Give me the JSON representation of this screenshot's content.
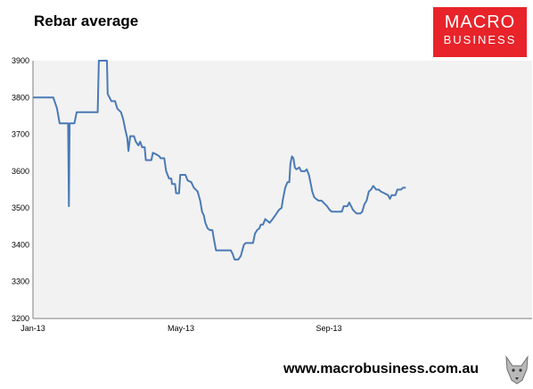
{
  "header": {
    "title": "Rebar average"
  },
  "logo": {
    "line1": "MACRO",
    "line2": "BUSINESS"
  },
  "footer": {
    "url": "www.macrobusiness.com.au"
  },
  "colors": {
    "line": "#4a7ab5",
    "plot_bg": "#f2f2f2",
    "logo_bg": "#e8232a"
  },
  "chart_data": {
    "type": "line",
    "title": "Rebar average",
    "xlabel": "",
    "ylabel": "",
    "ylim": [
      3200,
      3900
    ],
    "yticks": [
      3200,
      3300,
      3400,
      3500,
      3600,
      3700,
      3800,
      3900
    ],
    "x_tick_labels": [
      "Jan-13",
      "May-13",
      "Sep-13"
    ],
    "x_ticks_months": [
      0,
      4,
      8
    ],
    "x_range_months": [
      0,
      11.6
    ],
    "grid": false,
    "legend": "none",
    "series": [
      {
        "name": "",
        "points": [
          [
            0.0,
            3800
          ],
          [
            0.55,
            3800
          ],
          [
            0.65,
            3770
          ],
          [
            0.72,
            3730
          ],
          [
            0.95,
            3730
          ],
          [
            0.97,
            3505
          ],
          [
            0.99,
            3730
          ],
          [
            1.12,
            3730
          ],
          [
            1.18,
            3760
          ],
          [
            1.75,
            3760
          ],
          [
            1.78,
            3900
          ],
          [
            2.0,
            3900
          ],
          [
            2.02,
            3810
          ],
          [
            2.12,
            3790
          ],
          [
            2.22,
            3790
          ],
          [
            2.28,
            3770
          ],
          [
            2.38,
            3760
          ],
          [
            2.44,
            3740
          ],
          [
            2.5,
            3710
          ],
          [
            2.55,
            3690
          ],
          [
            2.58,
            3655
          ],
          [
            2.63,
            3695
          ],
          [
            2.73,
            3695
          ],
          [
            2.78,
            3680
          ],
          [
            2.85,
            3670
          ],
          [
            2.9,
            3680
          ],
          [
            2.95,
            3665
          ],
          [
            3.02,
            3665
          ],
          [
            3.05,
            3630
          ],
          [
            3.2,
            3630
          ],
          [
            3.24,
            3650
          ],
          [
            3.35,
            3645
          ],
          [
            3.42,
            3640
          ],
          [
            3.45,
            3635
          ],
          [
            3.55,
            3635
          ],
          [
            3.6,
            3600
          ],
          [
            3.68,
            3580
          ],
          [
            3.74,
            3580
          ],
          [
            3.76,
            3565
          ],
          [
            3.84,
            3565
          ],
          [
            3.87,
            3540
          ],
          [
            3.95,
            3540
          ],
          [
            3.98,
            3590
          ],
          [
            4.12,
            3590
          ],
          [
            4.18,
            3575
          ],
          [
            4.28,
            3570
          ],
          [
            4.35,
            3555
          ],
          [
            4.45,
            3545
          ],
          [
            4.52,
            3520
          ],
          [
            4.57,
            3490
          ],
          [
            4.62,
            3480
          ],
          [
            4.66,
            3460
          ],
          [
            4.72,
            3445
          ],
          [
            4.78,
            3440
          ],
          [
            4.85,
            3440
          ],
          [
            4.9,
            3410
          ],
          [
            4.95,
            3385
          ],
          [
            5.35,
            3385
          ],
          [
            5.4,
            3375
          ],
          [
            5.45,
            3360
          ],
          [
            5.55,
            3360
          ],
          [
            5.62,
            3370
          ],
          [
            5.7,
            3400
          ],
          [
            5.75,
            3405
          ],
          [
            5.95,
            3405
          ],
          [
            6.0,
            3430
          ],
          [
            6.06,
            3440
          ],
          [
            6.12,
            3445
          ],
          [
            6.16,
            3455
          ],
          [
            6.22,
            3455
          ],
          [
            6.28,
            3470
          ],
          [
            6.34,
            3465
          ],
          [
            6.4,
            3460
          ],
          [
            6.48,
            3470
          ],
          [
            6.55,
            3480
          ],
          [
            6.65,
            3495
          ],
          [
            6.72,
            3500
          ],
          [
            6.76,
            3525
          ],
          [
            6.82,
            3555
          ],
          [
            6.88,
            3570
          ],
          [
            6.93,
            3570
          ],
          [
            6.96,
            3620
          ],
          [
            7.0,
            3640
          ],
          [
            7.04,
            3635
          ],
          [
            7.08,
            3610
          ],
          [
            7.12,
            3605
          ],
          [
            7.2,
            3610
          ],
          [
            7.25,
            3600
          ],
          [
            7.35,
            3600
          ],
          [
            7.4,
            3605
          ],
          [
            7.46,
            3590
          ],
          [
            7.5,
            3570
          ],
          [
            7.55,
            3545
          ],
          [
            7.6,
            3530
          ],
          [
            7.65,
            3525
          ],
          [
            7.72,
            3520
          ],
          [
            7.8,
            3520
          ],
          [
            7.85,
            3515
          ],
          [
            7.95,
            3505
          ],
          [
            8.02,
            3495
          ],
          [
            8.08,
            3490
          ],
          [
            8.35,
            3490
          ],
          [
            8.4,
            3505
          ],
          [
            8.5,
            3505
          ],
          [
            8.55,
            3515
          ],
          [
            8.6,
            3505
          ],
          [
            8.65,
            3495
          ],
          [
            8.7,
            3490
          ],
          [
            8.75,
            3485
          ],
          [
            8.85,
            3485
          ],
          [
            8.9,
            3490
          ],
          [
            8.96,
            3510
          ],
          [
            9.02,
            3520
          ],
          [
            9.08,
            3545
          ],
          [
            9.14,
            3550
          ],
          [
            9.2,
            3560
          ],
          [
            9.28,
            3550
          ],
          [
            9.35,
            3550
          ],
          [
            9.4,
            3545
          ],
          [
            9.5,
            3540
          ],
          [
            9.6,
            3535
          ],
          [
            9.65,
            3525
          ],
          [
            9.7,
            3535
          ],
          [
            9.8,
            3535
          ],
          [
            9.85,
            3550
          ],
          [
            9.95,
            3550
          ],
          [
            10.0,
            3555
          ],
          [
            10.08,
            3555
          ]
        ]
      }
    ]
  }
}
